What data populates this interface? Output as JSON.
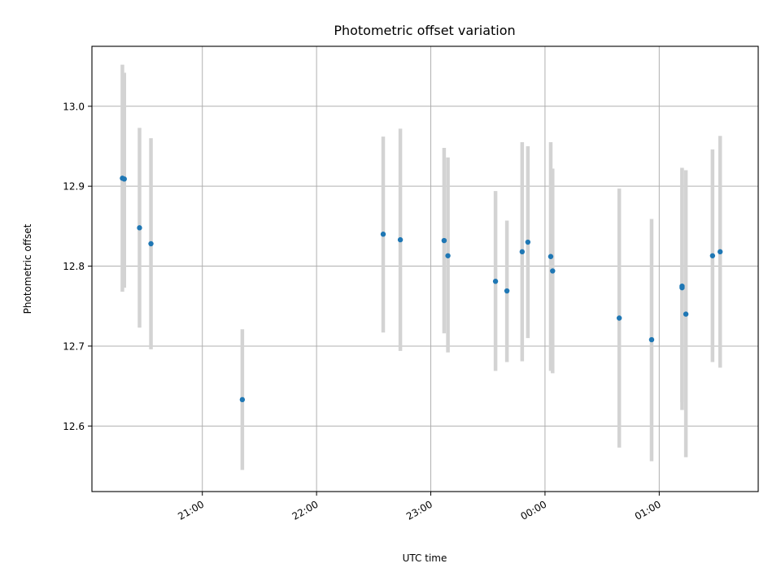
{
  "chart_data": {
    "type": "scatter",
    "title": "Photometric offset variation",
    "xlabel": "UTC time",
    "ylabel": "Photometric offset",
    "xlim": [
      "20:02",
      "01:52"
    ],
    "ylim": [
      12.518,
      13.075
    ],
    "x_ticks": [
      "21:00",
      "22:00",
      "23:00",
      "00:00",
      "01:00"
    ],
    "y_ticks": [
      12.6,
      12.7,
      12.8,
      12.9,
      13.0
    ],
    "y_tick_labels": [
      "12.6",
      "12.7",
      "12.8",
      "12.9",
      "13.0"
    ],
    "grid": true,
    "colors": {
      "point": "#1f77b4",
      "error_bar": "#d3d3d3",
      "grid": "#b0b0b0",
      "axes": "#000000"
    },
    "points": [
      {
        "x": "20:18",
        "y": 12.91,
        "y_low": 12.768,
        "y_high": 13.052
      },
      {
        "x": "20:19",
        "y": 12.909,
        "y_low": 12.773,
        "y_high": 13.042
      },
      {
        "x": "20:27",
        "y": 12.848,
        "y_low": 12.723,
        "y_high": 12.973
      },
      {
        "x": "20:33",
        "y": 12.828,
        "y_low": 12.696,
        "y_high": 12.96
      },
      {
        "x": "21:21",
        "y": 12.633,
        "y_low": 12.545,
        "y_high": 12.721
      },
      {
        "x": "22:35",
        "y": 12.84,
        "y_low": 12.717,
        "y_high": 12.962
      },
      {
        "x": "22:44",
        "y": 12.833,
        "y_low": 12.694,
        "y_high": 12.972
      },
      {
        "x": "23:07",
        "y": 12.832,
        "y_low": 12.716,
        "y_high": 12.948
      },
      {
        "x": "23:09",
        "y": 12.813,
        "y_low": 12.692,
        "y_high": 12.936
      },
      {
        "x": "23:34",
        "y": 12.781,
        "y_low": 12.669,
        "y_high": 12.894
      },
      {
        "x": "23:40",
        "y": 12.769,
        "y_low": 12.68,
        "y_high": 12.857
      },
      {
        "x": "23:48",
        "y": 12.818,
        "y_low": 12.681,
        "y_high": 12.955
      },
      {
        "x": "23:51",
        "y": 12.83,
        "y_low": 12.71,
        "y_high": 12.95
      },
      {
        "x": "00:03",
        "y": 12.812,
        "y_low": 12.669,
        "y_high": 12.955
      },
      {
        "x": "00:04",
        "y": 12.794,
        "y_low": 12.666,
        "y_high": 12.922
      },
      {
        "x": "00:39",
        "y": 12.735,
        "y_low": 12.573,
        "y_high": 12.897
      },
      {
        "x": "00:56",
        "y": 12.708,
        "y_low": 12.556,
        "y_high": 12.859
      },
      {
        "x": "01:12",
        "y": 12.773,
        "y_low": 12.62,
        "y_high": 12.923
      },
      {
        "x": "01:12",
        "y": 12.775,
        "y_low": 12.63,
        "y_high": 12.921
      },
      {
        "x": "01:14",
        "y": 12.74,
        "y_low": 12.561,
        "y_high": 12.92
      },
      {
        "x": "01:28",
        "y": 12.813,
        "y_low": 12.68,
        "y_high": 12.946
      },
      {
        "x": "01:32",
        "y": 12.818,
        "y_low": 12.673,
        "y_high": 12.963
      }
    ]
  }
}
